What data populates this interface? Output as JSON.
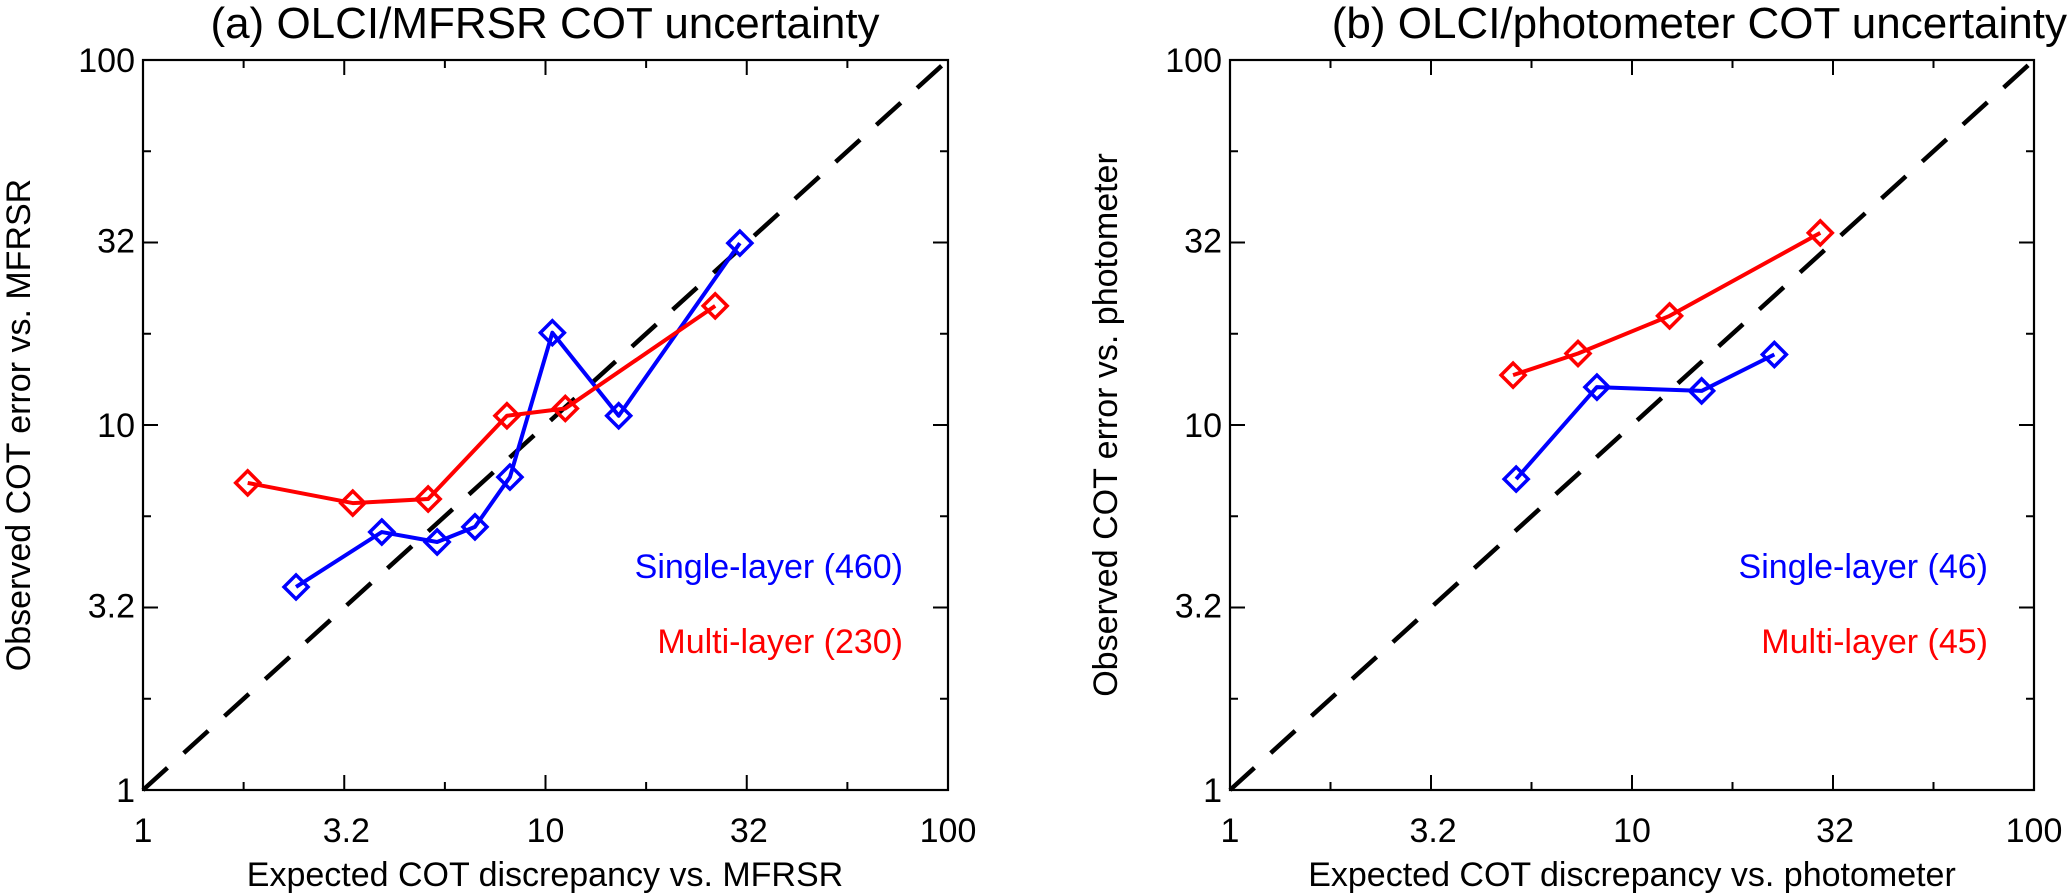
{
  "chart_data": [
    {
      "id": "a",
      "type": "line",
      "title": "(a) OLCI/MFRSR COT uncertainty",
      "xlabel": "Expected COT discrepancy vs. MFRSR",
      "ylabel": "Observed COT error vs. MFRSR",
      "xscale": "log",
      "yscale": "log",
      "xlim": [
        1,
        100
      ],
      "ylim": [
        1,
        100
      ],
      "xticks": [
        1,
        3.2,
        10,
        32,
        100
      ],
      "xtick_labels": [
        "1",
        "3.2",
        "10",
        "32",
        "100"
      ],
      "yticks": [
        1,
        3.2,
        10,
        32,
        100
      ],
      "ytick_labels": [
        "1",
        "3.2",
        "10",
        "32",
        "100"
      ],
      "grid": false,
      "reference_line": {
        "type": "1:1",
        "style": "dashed",
        "color": "#000000"
      },
      "legend_placement": "bottom-right",
      "series": [
        {
          "name": "Single-layer (460)",
          "color": "#0000ff",
          "marker": "diamond",
          "x": [
            2.4,
            3.92,
            5.38,
            6.68,
            8.16,
            10.4,
            15.2,
            30.4
          ],
          "y": [
            3.6,
            5.09,
            4.78,
            5.26,
            7.2,
            17.9,
            10.6,
            31.5
          ]
        },
        {
          "name": "Multi-layer (230)",
          "color": "#ff0000",
          "marker": "diamond",
          "x": [
            1.82,
            3.32,
            5.11,
            8.02,
            11.2,
            26.4
          ],
          "y": [
            6.94,
            6.11,
            6.27,
            10.6,
            11.1,
            21.2
          ]
        }
      ]
    },
    {
      "id": "b",
      "type": "line",
      "title": "(b) OLCI/photometer COT uncertainty",
      "xlabel": "Expected COT discrepancy vs. photometer",
      "ylabel": "Observed COT error vs. photometer",
      "xscale": "log",
      "yscale": "log",
      "xlim": [
        1,
        100
      ],
      "ylim": [
        1,
        100
      ],
      "xticks": [
        1,
        3.2,
        10,
        32,
        100
      ],
      "xtick_labels": [
        "1",
        "3.2",
        "10",
        "32",
        "100"
      ],
      "yticks": [
        1,
        3.2,
        10,
        32,
        100
      ],
      "ytick_labels": [
        "1",
        "3.2",
        "10",
        "32",
        "100"
      ],
      "grid": false,
      "reference_line": {
        "type": "1:1",
        "style": "dashed",
        "color": "#000000"
      },
      "legend_placement": "bottom-right",
      "series": [
        {
          "name": "Single-layer (46)",
          "color": "#0000ff",
          "marker": "diamond",
          "x": [
            5.15,
            8.18,
            14.9,
            22.6
          ],
          "y": [
            7.11,
            12.7,
            12.4,
            15.6
          ]
        },
        {
          "name": "Multi-layer (45)",
          "color": "#ff0000",
          "marker": "diamond",
          "x": [
            5.06,
            7.34,
            12.4,
            29.4
          ],
          "y": [
            13.7,
            15.7,
            19.9,
            33.6
          ]
        }
      ]
    }
  ]
}
